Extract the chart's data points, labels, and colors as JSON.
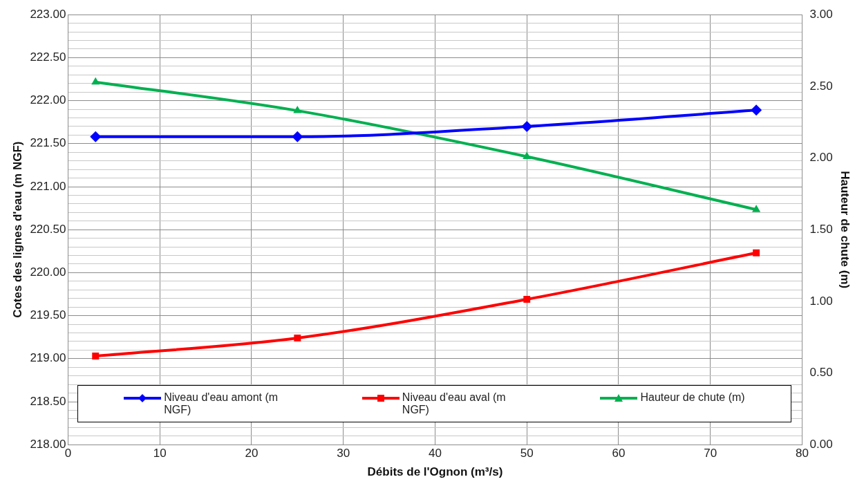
{
  "chart_data": {
    "type": "line",
    "xlabel": "Débits de l'Ognon (m³/s)",
    "ylabel": "Cotes des lignes d'eau (m NGF)",
    "y2label": "Hauteur de chute (m)",
    "x": [
      3,
      25,
      50,
      75
    ],
    "series": [
      {
        "name": "Niveau d'eau amont (m NGF)",
        "color": "#0000ff",
        "marker": "diamond",
        "values": [
          221.58,
          221.58,
          221.7,
          221.89
        ]
      },
      {
        "name": "Niveau d'eau aval (m NGF)",
        "color": "#ff0000",
        "marker": "square",
        "values": [
          219.03,
          219.24,
          219.69,
          220.23
        ]
      },
      {
        "name": "Hauteur de chute (m)",
        "color": "#00b050",
        "marker": "triangle",
        "axis": "y2",
        "values": [
          2.53,
          2.33,
          2.01,
          1.64
        ]
      }
    ],
    "xlim": [
      0,
      80
    ],
    "xticks": [
      0,
      10,
      20,
      30,
      40,
      50,
      60,
      70,
      80
    ],
    "ylim": [
      218,
      223
    ],
    "yticks": [
      {
        "value": 218,
        "label": "218.00"
      },
      {
        "value": 218.1,
        "label": null
      },
      {
        "value": 218.2,
        "label": null
      },
      {
        "value": 218.3,
        "label": null
      },
      {
        "value": 218.4,
        "label": null
      },
      {
        "value": 218.5,
        "label": "218.50"
      },
      {
        "value": 218.6,
        "label": null
      },
      {
        "value": 218.7,
        "label": null
      },
      {
        "value": 218.8,
        "label": null
      },
      {
        "value": 218.9,
        "label": null
      },
      {
        "value": 219,
        "label": "219.00"
      },
      {
        "value": 219.1,
        "label": null
      },
      {
        "value": 219.2,
        "label": null
      },
      {
        "value": 219.3,
        "label": null
      },
      {
        "value": 219.4,
        "label": null
      },
      {
        "value": 219.5,
        "label": "219.50"
      },
      {
        "value": 219.6,
        "label": null
      },
      {
        "value": 219.7,
        "label": null
      },
      {
        "value": 219.8,
        "label": null
      },
      {
        "value": 219.9,
        "label": null
      },
      {
        "value": 220,
        "label": "220.00"
      },
      {
        "value": 220.1,
        "label": null
      },
      {
        "value": 220.2,
        "label": null
      },
      {
        "value": 220.3,
        "label": null
      },
      {
        "value": 220.4,
        "label": null
      },
      {
        "value": 220.5,
        "label": "220.50"
      },
      {
        "value": 220.6,
        "label": null
      },
      {
        "value": 220.7,
        "label": null
      },
      {
        "value": 220.8,
        "label": null
      },
      {
        "value": 220.9,
        "label": null
      },
      {
        "value": 221,
        "label": "221.00"
      },
      {
        "value": 221.1,
        "label": null
      },
      {
        "value": 221.2,
        "label": null
      },
      {
        "value": 221.3,
        "label": null
      },
      {
        "value": 221.4,
        "label": null
      },
      {
        "value": 221.5,
        "label": "221.50"
      },
      {
        "value": 221.6,
        "label": null
      },
      {
        "value": 221.7,
        "label": null
      },
      {
        "value": 221.8,
        "label": null
      },
      {
        "value": 221.9,
        "label": null
      },
      {
        "value": 222,
        "label": "222.00"
      },
      {
        "value": 222.1,
        "label": null
      },
      {
        "value": 222.2,
        "label": null
      },
      {
        "value": 222.3,
        "label": null
      },
      {
        "value": 222.4,
        "label": null
      },
      {
        "value": 222.5,
        "label": "222.50"
      },
      {
        "value": 222.6,
        "label": null
      },
      {
        "value": 222.7,
        "label": null
      },
      {
        "value": 222.8,
        "label": null
      },
      {
        "value": 222.9,
        "label": null
      },
      {
        "value": 223,
        "label": "223.00"
      }
    ],
    "y2lim": [
      0,
      3
    ],
    "y2ticks": [
      {
        "value": 0,
        "label": "0.00"
      },
      {
        "value": 0.5,
        "label": "0.50"
      },
      {
        "value": 1,
        "label": "1.00"
      },
      {
        "value": 1.5,
        "label": "1.50"
      },
      {
        "value": 2,
        "label": "2.00"
      },
      {
        "value": 2.5,
        "label": "2.50"
      },
      {
        "value": 3,
        "label": "3.00"
      }
    ],
    "grid": true,
    "legend": "bottom"
  }
}
